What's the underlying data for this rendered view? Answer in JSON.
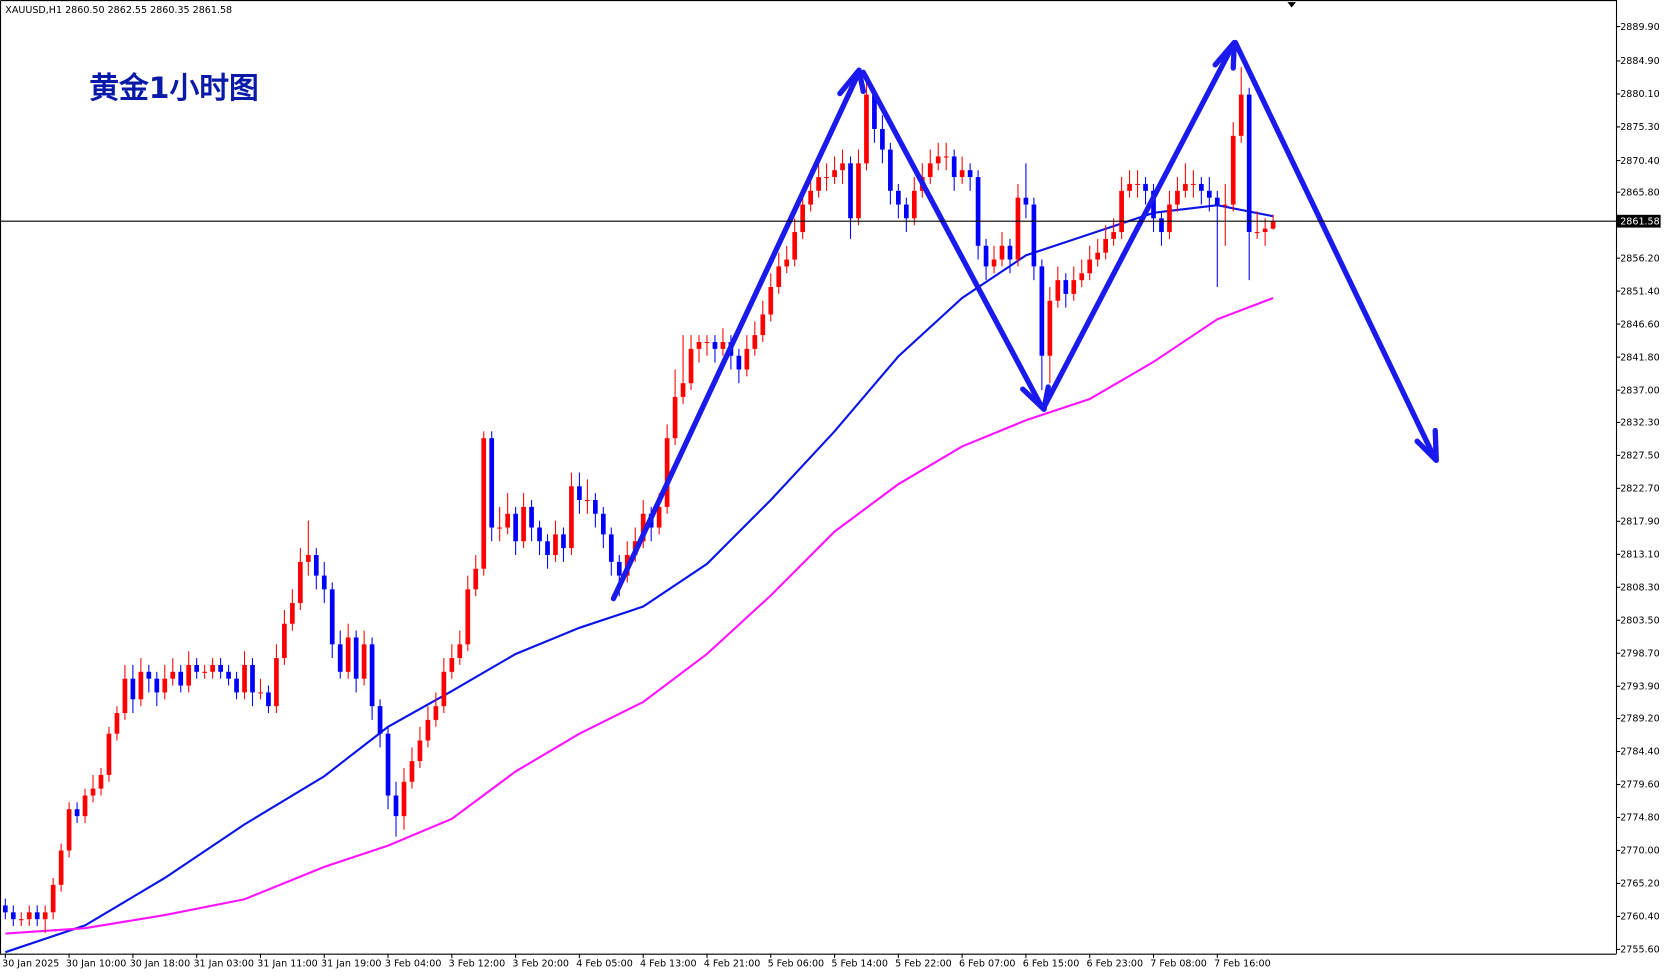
{
  "chart_data": {
    "type": "candlestick",
    "title": "XAUUSD,H1  2860.50 2862.55 2860.35 2861.58",
    "annotation": "黄金1小时图",
    "up_color": "#ff0000",
    "down_color": "#0000ff",
    "categories": [
      "30 Jan 2025",
      null,
      null,
      null,
      null,
      null,
      null,
      null,
      "30 Jan 10:00",
      null,
      null,
      null,
      null,
      null,
      null,
      null,
      "30 Jan 18:00",
      null,
      null,
      null,
      null,
      null,
      null,
      null,
      "31 Jan 03:00",
      null,
      null,
      null,
      null,
      null,
      null,
      null,
      "31 Jan 11:00",
      null,
      null,
      null,
      null,
      null,
      null,
      null,
      "31 Jan 19:00",
      null,
      null,
      null,
      null,
      null,
      null,
      null,
      "3 Feb 04:00",
      null,
      null,
      null,
      null,
      null,
      null,
      null,
      "3 Feb 12:00",
      null,
      null,
      null,
      null,
      null,
      null,
      null,
      "3 Feb 20:00",
      null,
      null,
      null,
      null,
      null,
      null,
      null,
      "4 Feb 05:00",
      null,
      null,
      null,
      null,
      null,
      null,
      null,
      "4 Feb 13:00",
      null,
      null,
      null,
      null,
      null,
      null,
      null,
      "4 Feb 21:00",
      null,
      null,
      null,
      null,
      null,
      null,
      null,
      "5 Feb 06:00",
      null,
      null,
      null,
      null,
      null,
      null,
      null,
      "5 Feb 14:00",
      null,
      null,
      null,
      null,
      null,
      null,
      null,
      "5 Feb 22:00",
      null,
      null,
      null,
      null,
      null,
      null,
      null,
      "6 Feb 07:00",
      null,
      null,
      null,
      null,
      null,
      null,
      null,
      "6 Feb 15:00",
      null,
      null,
      null,
      null,
      null,
      null,
      null,
      "6 Feb 23:00",
      null,
      null,
      null,
      null,
      null,
      null,
      null,
      "7 Feb 08:00",
      null,
      null,
      null,
      null,
      null,
      null,
      null,
      "7 Feb 16:00",
      null,
      null,
      null,
      null,
      null,
      null,
      null
    ],
    "ohlc": [
      [
        2762,
        2763,
        2760,
        2761
      ],
      [
        2761,
        2762,
        2759,
        2760
      ],
      [
        2760,
        2761,
        2759,
        2760
      ],
      [
        2760,
        2762,
        2759,
        2761
      ],
      [
        2761,
        2762,
        2759,
        2760
      ],
      [
        2760,
        2762,
        2758,
        2761
      ],
      [
        2761,
        2766,
        2760,
        2765
      ],
      [
        2765,
        2771,
        2764,
        2770
      ],
      [
        2770,
        2777,
        2769,
        2776
      ],
      [
        2776,
        2777,
        2774,
        2775
      ],
      [
        2775,
        2779,
        2774,
        2778
      ],
      [
        2778,
        2781,
        2777,
        2779
      ],
      [
        2779,
        2782,
        2778,
        2781
      ],
      [
        2781,
        2788,
        2780,
        2787
      ],
      [
        2787,
        2791,
        2786,
        2790
      ],
      [
        2790,
        2797,
        2789,
        2795
      ],
      [
        2795,
        2797,
        2790,
        2792
      ],
      [
        2792,
        2798,
        2791,
        2796
      ],
      [
        2796,
        2797,
        2793,
        2795
      ],
      [
        2795,
        2796,
        2791,
        2793
      ],
      [
        2793,
        2797,
        2792,
        2795
      ],
      [
        2795,
        2798,
        2794,
        2796
      ],
      [
        2796,
        2797,
        2793,
        2794
      ],
      [
        2794,
        2799,
        2793,
        2797
      ],
      [
        2797,
        2798,
        2795,
        2796
      ],
      [
        2796,
        2797,
        2795,
        2796
      ],
      [
        2796,
        2798,
        2795,
        2797
      ],
      [
        2797,
        2798,
        2795,
        2796
      ],
      [
        2796,
        2797,
        2794,
        2795
      ],
      [
        2795,
        2796,
        2792,
        2793
      ],
      [
        2793,
        2799,
        2792,
        2797
      ],
      [
        2797,
        2798,
        2791,
        2793
      ],
      [
        2793,
        2795,
        2792,
        2793
      ],
      [
        2793,
        2794,
        2790,
        2791
      ],
      [
        2791,
        2800,
        2790,
        2798
      ],
      [
        2798,
        2805,
        2797,
        2803
      ],
      [
        2803,
        2808,
        2802,
        2806
      ],
      [
        2806,
        2814,
        2805,
        2812
      ],
      [
        2812,
        2818,
        2810,
        2813
      ],
      [
        2813,
        2814,
        2808,
        2810
      ],
      [
        2810,
        2812,
        2806,
        2808
      ],
      [
        2808,
        2809,
        2798,
        2800
      ],
      [
        2800,
        2802,
        2795,
        2796
      ],
      [
        2796,
        2803,
        2795,
        2801
      ],
      [
        2801,
        2802,
        2793,
        2795
      ],
      [
        2795,
        2802,
        2794,
        2800
      ],
      [
        2800,
        2801,
        2789,
        2791
      ],
      [
        2791,
        2792,
        2785,
        2787
      ],
      [
        2787,
        2788,
        2776,
        2778
      ],
      [
        2778,
        2780,
        2772,
        2775
      ],
      [
        2775,
        2782,
        2773,
        2780
      ],
      [
        2780,
        2785,
        2779,
        2783
      ],
      [
        2783,
        2788,
        2782,
        2786
      ],
      [
        2786,
        2791,
        2785,
        2789
      ],
      [
        2789,
        2793,
        2788,
        2791
      ],
      [
        2791,
        2798,
        2790,
        2796
      ],
      [
        2796,
        2800,
        2795,
        2798
      ],
      [
        2798,
        2802,
        2797,
        2800
      ],
      [
        2800,
        2810,
        2799,
        2808
      ],
      [
        2808,
        2813,
        2807,
        2811
      ],
      [
        2811,
        2831,
        2810,
        2830
      ],
      [
        2830,
        2831,
        2815,
        2817
      ],
      [
        2817,
        2820,
        2815,
        2817
      ],
      [
        2817,
        2822,
        2816,
        2819
      ],
      [
        2819,
        2820,
        2813,
        2815
      ],
      [
        2815,
        2822,
        2814,
        2820
      ],
      [
        2820,
        2821,
        2815,
        2817
      ],
      [
        2817,
        2818,
        2813,
        2815
      ],
      [
        2815,
        2816,
        2811,
        2813
      ],
      [
        2813,
        2818,
        2812,
        2816
      ],
      [
        2816,
        2817,
        2812,
        2814
      ],
      [
        2814,
        2825,
        2813,
        2823
      ],
      [
        2823,
        2825,
        2819,
        2821
      ],
      [
        2821,
        2824,
        2819,
        2821
      ],
      [
        2821,
        2822,
        2817,
        2819
      ],
      [
        2819,
        2820,
        2814,
        2816
      ],
      [
        2816,
        2817,
        2810,
        2812
      ],
      [
        2812,
        2813,
        2807,
        2810
      ],
      [
        2810,
        2815,
        2809,
        2813
      ],
      [
        2813,
        2817,
        2812,
        2815
      ],
      [
        2815,
        2821,
        2814,
        2819
      ],
      [
        2819,
        2820,
        2815,
        2817
      ],
      [
        2817,
        2822,
        2816,
        2820
      ],
      [
        2820,
        2832,
        2819,
        2830
      ],
      [
        2830,
        2840,
        2829,
        2836
      ],
      [
        2836,
        2845,
        2835,
        2838
      ],
      [
        2838,
        2845,
        2837,
        2843
      ],
      [
        2843,
        2845,
        2841,
        2844
      ],
      [
        2844,
        2845,
        2842,
        2844
      ],
      [
        2844,
        2845,
        2841,
        2843
      ],
      [
        2843,
        2846,
        2842,
        2844
      ],
      [
        2844,
        2845,
        2840,
        2842
      ],
      [
        2842,
        2843,
        2838,
        2840
      ],
      [
        2840,
        2845,
        2839,
        2843
      ],
      [
        2843,
        2847,
        2842,
        2845
      ],
      [
        2845,
        2850,
        2844,
        2848
      ],
      [
        2848,
        2854,
        2847,
        2852
      ],
      [
        2852,
        2857,
        2851,
        2855
      ],
      [
        2855,
        2858,
        2854,
        2856
      ],
      [
        2856,
        2862,
        2855,
        2860
      ],
      [
        2860,
        2866,
        2859,
        2864
      ],
      [
        2864,
        2869,
        2863,
        2866
      ],
      [
        2866,
        2871,
        2865,
        2868
      ],
      [
        2868,
        2870,
        2866,
        2868
      ],
      [
        2868,
        2871,
        2867,
        2869
      ],
      [
        2869,
        2872,
        2867,
        2870
      ],
      [
        2870,
        2871,
        2859,
        2862
      ],
      [
        2862,
        2872,
        2861,
        2870
      ],
      [
        2870,
        2883,
        2869,
        2880
      ],
      [
        2880,
        2881,
        2873,
        2875
      ],
      [
        2875,
        2877,
        2870,
        2872
      ],
      [
        2872,
        2873,
        2864,
        2866
      ],
      [
        2866,
        2867,
        2862,
        2864
      ],
      [
        2864,
        2865,
        2860,
        2862
      ],
      [
        2862,
        2868,
        2861,
        2866
      ],
      [
        2866,
        2870,
        2865,
        2868
      ],
      [
        2868,
        2872,
        2867,
        2870
      ],
      [
        2870,
        2873,
        2869,
        2871
      ],
      [
        2871,
        2873,
        2869,
        2871
      ],
      [
        2871,
        2872,
        2866,
        2868
      ],
      [
        2868,
        2871,
        2867,
        2869
      ],
      [
        2869,
        2870,
        2866,
        2868
      ],
      [
        2868,
        2869,
        2856,
        2858
      ],
      [
        2858,
        2859,
        2853,
        2855
      ],
      [
        2855,
        2858,
        2854,
        2856
      ],
      [
        2856,
        2860,
        2855,
        2858
      ],
      [
        2858,
        2859,
        2854,
        2856
      ],
      [
        2856,
        2867,
        2855,
        2865
      ],
      [
        2865,
        2870,
        2862,
        2864
      ],
      [
        2864,
        2865,
        2853,
        2855
      ],
      [
        2855,
        2856,
        2837,
        2842
      ],
      [
        2842,
        2852,
        2838,
        2850
      ],
      [
        2850,
        2855,
        2849,
        2853
      ],
      [
        2853,
        2854,
        2849,
        2851
      ],
      [
        2851,
        2855,
        2850,
        2853
      ],
      [
        2853,
        2856,
        2852,
        2854
      ],
      [
        2854,
        2858,
        2853,
        2856
      ],
      [
        2856,
        2859,
        2855,
        2857
      ],
      [
        2857,
        2861,
        2856,
        2859
      ],
      [
        2859,
        2862,
        2858,
        2860
      ],
      [
        2860,
        2868,
        2859,
        2866
      ],
      [
        2866,
        2869,
        2865,
        2867
      ],
      [
        2867,
        2869,
        2865,
        2867
      ],
      [
        2867,
        2868,
        2864,
        2866
      ],
      [
        2866,
        2867,
        2860,
        2862
      ],
      [
        2862,
        2863,
        2858,
        2860
      ],
      [
        2860,
        2866,
        2859,
        2864
      ],
      [
        2864,
        2868,
        2863,
        2866
      ],
      [
        2866,
        2870,
        2865,
        2867
      ],
      [
        2867,
        2869,
        2865,
        2867
      ],
      [
        2867,
        2868,
        2864,
        2866
      ],
      [
        2866,
        2868,
        2863,
        2865
      ],
      [
        2865,
        2866,
        2852,
        2864
      ],
      [
        2864,
        2867,
        2858,
        2864
      ],
      [
        2864,
        2876,
        2863,
        2874
      ],
      [
        2874,
        2884,
        2873,
        2880
      ],
      [
        2880,
        2881,
        2853,
        2860
      ],
      [
        2860,
        2863,
        2859,
        2860
      ],
      [
        2860,
        2862,
        2858,
        2860.5
      ],
      [
        2860.5,
        2862.55,
        2860.35,
        2861.58
      ]
    ],
    "lines": [
      {
        "color": "#0a14e6",
        "x": [
          0,
          10,
          20,
          30,
          40,
          48,
          56,
          64,
          72,
          80,
          88,
          96,
          104,
          112,
          120,
          128,
          136,
          144,
          152,
          159
        ],
        "values": [
          2755.2,
          2759.1,
          2766,
          2773.8,
          2780.8,
          2788,
          2793.2,
          2798.6,
          2802.4,
          2805.5,
          2811.7,
          2821,
          2831,
          2841.9,
          2850.4,
          2856.6,
          2859.7,
          2862.8,
          2863.9,
          2862.3
        ]
      },
      {
        "color": "#ff14ff",
        "x": [
          0,
          10,
          20,
          30,
          40,
          48,
          56,
          64,
          72,
          80,
          88,
          96,
          104,
          112,
          120,
          128,
          136,
          144,
          152,
          159
        ],
        "values": [
          2757.9,
          2758.7,
          2760.6,
          2762.9,
          2767.6,
          2770.7,
          2774.6,
          2781.5,
          2787,
          2791.6,
          2798.6,
          2807.1,
          2816.4,
          2823.3,
          2828.8,
          2832.6,
          2835.7,
          2841.1,
          2847.3,
          2850.4
        ]
      }
    ],
    "current_price": {
      "value": 2861.58,
      "label": "2861.58"
    },
    "ylim": [
      2754.98,
      2893.77
    ],
    "yticks": [
      {
        "value": 2889.9,
        "label": "2889.90"
      },
      {
        "value": 2884.9,
        "label": "2884.90"
      },
      {
        "value": 2880.1,
        "label": "2880.10"
      },
      {
        "value": 2875.3,
        "label": "2875.30"
      },
      {
        "value": 2870.4,
        "label": "2870.40"
      },
      {
        "value": 2865.8,
        "label": "2865.80"
      },
      {
        "value": 2856.2,
        "label": "2856.20"
      },
      {
        "value": 2851.4,
        "label": "2851.40"
      },
      {
        "value": 2846.6,
        "label": "2846.60"
      },
      {
        "value": 2841.8,
        "label": "2841.80"
      },
      {
        "value": 2837,
        "label": "2837.00"
      },
      {
        "value": 2832.3,
        "label": "2832.30"
      },
      {
        "value": 2827.5,
        "label": "2827.50"
      },
      {
        "value": 2822.7,
        "label": "2822.70"
      },
      {
        "value": 2817.9,
        "label": "2817.90"
      },
      {
        "value": 2813.1,
        "label": "2813.10"
      },
      {
        "value": 2808.3,
        "label": "2808.30"
      },
      {
        "value": 2803.5,
        "label": "2803.50"
      },
      {
        "value": 2798.7,
        "label": "2798.70"
      },
      {
        "value": 2793.9,
        "label": "2793.90"
      },
      {
        "value": 2789.2,
        "label": "2789.20"
      },
      {
        "value": 2784.4,
        "label": "2784.40"
      },
      {
        "value": 2779.6,
        "label": "2779.60"
      },
      {
        "value": 2774.8,
        "label": "2774.80"
      },
      {
        "value": 2770,
        "label": "2770.00"
      },
      {
        "value": 2765.2,
        "label": "2765.20"
      },
      {
        "value": 2760.4,
        "label": "2760.40"
      },
      {
        "value": 2755.6,
        "label": "2755.60"
      }
    ]
  }
}
